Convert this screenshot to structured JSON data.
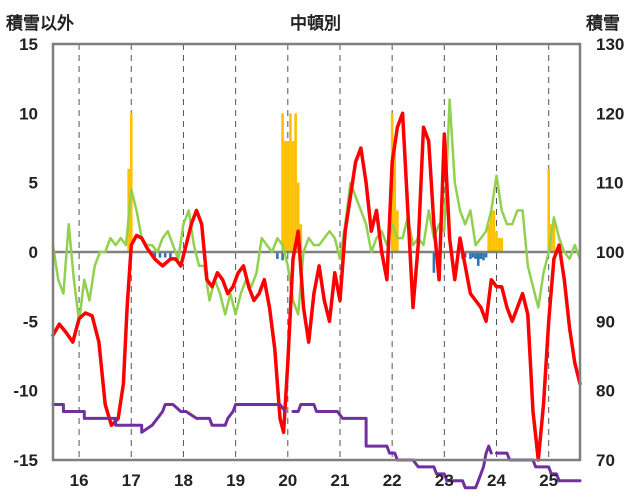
{
  "chart_data": {
    "type": "line",
    "title": "中頓別",
    "ylabel_left": "積雪以外",
    "ylabel_right": "積雪",
    "xlim": [
      15.5,
      25.6
    ],
    "ylim_left": [
      -15,
      15
    ],
    "ylim_right": [
      70,
      130
    ],
    "left_ticks": [
      "15",
      "10",
      "5",
      "0",
      "-5",
      "-10",
      "-15"
    ],
    "right_ticks": [
      "130",
      "120",
      "110",
      "100",
      "90",
      "80",
      "70"
    ],
    "x_ticks": [
      "16",
      "17",
      "18",
      "19",
      "20",
      "21",
      "22",
      "23",
      "24",
      "25"
    ],
    "grid": "vertical-dashed",
    "legend": "none",
    "colors": {
      "red": "#ff0000",
      "green": "#92d050",
      "purple": "#7030a0",
      "orange_bars": "#ffc000",
      "blue_bars": "#2e75b6",
      "zero_line": "#808080",
      "frame": "#7f7f7f"
    },
    "series": [
      {
        "color": "red",
        "axis": "left",
        "x": [
          15.5,
          15.62,
          15.75,
          15.88,
          16.0,
          16.12,
          16.25,
          16.38,
          16.5,
          16.62,
          16.75,
          16.85,
          16.92,
          17.0,
          17.1,
          17.2,
          17.3,
          17.45,
          17.6,
          17.75,
          17.85,
          17.95,
          18.05,
          18.15,
          18.25,
          18.35,
          18.45,
          18.55,
          18.65,
          18.75,
          18.85,
          18.95,
          19.05,
          19.15,
          19.25,
          19.35,
          19.45,
          19.55,
          19.65,
          19.75,
          19.85,
          19.92,
          20.0,
          20.1,
          20.2,
          20.3,
          20.4,
          20.5,
          20.6,
          20.7,
          20.8,
          20.9,
          21.0,
          21.1,
          21.2,
          21.3,
          21.4,
          21.5,
          21.6,
          21.7,
          21.8,
          21.9,
          22.0,
          22.1,
          22.2,
          22.3,
          22.4,
          22.5,
          22.6,
          22.7,
          22.8,
          22.9,
          23.0,
          23.1,
          23.2,
          23.3,
          23.4,
          23.5,
          23.6,
          23.7,
          23.8,
          23.9,
          24.0,
          24.1,
          24.2,
          24.3,
          24.4,
          24.5,
          24.6,
          24.7,
          24.8,
          24.9,
          25.0,
          25.1,
          25.2,
          25.3,
          25.4,
          25.5,
          25.6
        ],
        "y": [
          -6,
          -5.2,
          -5.8,
          -6.5,
          -4.8,
          -4.4,
          -4.6,
          -6.5,
          -11,
          -12.5,
          -12,
          -9.5,
          -4,
          0.5,
          1.2,
          1,
          0.3,
          -0.5,
          -1,
          -0.5,
          -0.5,
          -1,
          0.5,
          2,
          3,
          2,
          -2,
          -2.5,
          -1.5,
          -2,
          -3,
          -2.5,
          -1.5,
          -1,
          -2.5,
          -3.5,
          -3,
          -2,
          -4,
          -7,
          -12,
          -13,
          -8,
          -0.5,
          1.5,
          -4,
          -6.5,
          -3,
          -1,
          -3.5,
          -5,
          -1.5,
          -3.5,
          1.5,
          4,
          6.5,
          7.5,
          5,
          1.5,
          3,
          0,
          -2,
          6.5,
          9,
          10,
          3,
          -4,
          0.5,
          9,
          8,
          2,
          -2,
          8.5,
          1,
          -2,
          1,
          -1,
          -3,
          -3.5,
          -4,
          -5,
          -2,
          -2.5,
          -2.5,
          -4,
          -5,
          -4,
          -3,
          -4.5,
          -11.5,
          -15,
          -11,
          -5,
          -0.5,
          0.5,
          -2,
          -5.5,
          -8,
          -9.5
        ]
      },
      {
        "color": "green",
        "axis": "left",
        "x": [
          15.5,
          15.6,
          15.7,
          15.8,
          15.9,
          16.0,
          16.1,
          16.2,
          16.3,
          16.4,
          16.5,
          16.6,
          16.7,
          16.8,
          16.9,
          17.0,
          17.1,
          17.2,
          17.3,
          17.4,
          17.5,
          17.6,
          17.7,
          17.8,
          17.9,
          18.0,
          18.1,
          18.2,
          18.3,
          18.4,
          18.5,
          18.6,
          18.7,
          18.8,
          18.9,
          19.0,
          19.1,
          19.2,
          19.3,
          19.4,
          19.5,
          19.6,
          19.7,
          19.8,
          19.9,
          20.0,
          20.1,
          20.2,
          20.3,
          20.4,
          20.5,
          20.6,
          20.7,
          20.8,
          20.9,
          21.0,
          21.1,
          21.2,
          21.3,
          21.4,
          21.5,
          21.6,
          21.7,
          21.8,
          21.9,
          22.0,
          22.1,
          22.2,
          22.3,
          22.4,
          22.5,
          22.6,
          22.7,
          22.8,
          22.9,
          23.0,
          23.1,
          23.2,
          23.3,
          23.4,
          23.5,
          23.6,
          23.7,
          23.8,
          23.9,
          24.0,
          24.1,
          24.2,
          24.3,
          24.4,
          24.5,
          24.6,
          24.7,
          24.8,
          24.9,
          25.0,
          25.1,
          25.2,
          25.3,
          25.4,
          25.5,
          25.6
        ],
        "y": [
          0.5,
          -2,
          -3,
          2,
          -2,
          -5,
          -2,
          -3.5,
          -1,
          0,
          0,
          1,
          0.5,
          1,
          0.5,
          4.5,
          3,
          1,
          0.5,
          0.5,
          0,
          1,
          1.5,
          0.5,
          -0.5,
          2,
          3,
          0.5,
          -1,
          -1,
          -3.5,
          -2,
          -3,
          -4.5,
          -3,
          -4.5,
          -3,
          -2,
          -2.5,
          -1.5,
          1,
          0.5,
          0,
          1,
          0.5,
          -1,
          -3.5,
          -4.5,
          0,
          1,
          0.5,
          0.5,
          1,
          1.5,
          1,
          -0.5,
          2,
          5,
          4,
          3,
          2,
          0,
          1,
          1.5,
          0.5,
          2,
          1,
          1,
          2.5,
          0.5,
          1,
          0.5,
          3,
          1,
          2,
          1.5,
          11,
          5,
          3,
          2,
          3,
          0.5,
          1,
          1.5,
          3,
          5.5,
          3,
          2,
          2,
          3,
          3,
          -1,
          -2.5,
          -4,
          -1.5,
          0,
          2.5,
          1,
          0,
          -0.5,
          0.5,
          -0.5
        ]
      },
      {
        "color": "purple",
        "axis": "right",
        "segments": [
          {
            "x": [
              15.5,
              15.7,
              15.7,
              16.1,
              16.1,
              16.7,
              16.7,
              16.8,
              16.8,
              17.2,
              17.2,
              17.4,
              17.5,
              17.6,
              17.65,
              17.8,
              17.95,
              18.05,
              18.25,
              18.5,
              18.55,
              18.8,
              18.85,
              18.95,
              19.0,
              19.1,
              19.3,
              19.5,
              19.6,
              19.85,
              19.95
            ],
            "y": [
              78,
              78,
              77,
              77,
              76,
              76,
              75,
              75,
              75,
              75,
              74,
              75,
              76,
              77,
              78,
              78,
              77,
              77,
              76,
              76,
              75,
              75,
              76,
              77,
              78,
              78,
              78,
              78,
              78,
              78,
              77
            ]
          },
          {
            "x": [
              20.1,
              20.2,
              20.25,
              20.5,
              20.55,
              20.95,
              21.05,
              21.1,
              21.5,
              21.5,
              21.9,
              21.95,
              22.05,
              22.1,
              22.4,
              22.5,
              22.8,
              22.85,
              23.0,
              23.05,
              23.35,
              23.4,
              23.6,
              23.65,
              23.75,
              23.8,
              23.85,
              23.9
            ],
            "y": [
              77,
              77,
              78,
              78,
              77,
              77,
              76,
              76,
              76,
              72,
              72,
              71,
              71,
              70,
              70,
              69,
              69,
              68,
              68,
              67,
              67,
              66,
              66,
              67,
              69,
              71,
              72,
              71
            ]
          },
          {
            "x": [
              24.0,
              24.2,
              24.25,
              24.7,
              24.75,
              25.0,
              25.05,
              25.15,
              25.2,
              25.6
            ],
            "y": [
              71,
              71,
              70,
              70,
              69,
              69,
              68,
              68,
              67,
              67
            ]
          }
        ]
      }
    ],
    "bars": [
      {
        "color": "orange_bars",
        "axis": "left",
        "x": [
          16.95,
          17.0,
          19.9,
          19.95,
          20.0,
          20.05,
          20.1,
          20.15,
          20.2,
          20.25,
          22.0,
          22.05,
          22.1,
          23.85,
          23.9,
          23.95,
          24.0,
          24.05,
          24.1,
          25.0,
          25.05,
          25.1
        ],
        "values": [
          6,
          10,
          10,
          8,
          8,
          10,
          8,
          10,
          5,
          2,
          10,
          8,
          3,
          2,
          3,
          3,
          1.5,
          1,
          1,
          6,
          2,
          2
        ]
      },
      {
        "color": "blue_bars",
        "axis": "left",
        "x": [
          17.45,
          17.55,
          17.65,
          17.75,
          19.8,
          19.9,
          22.8,
          23.35,
          23.4,
          23.5,
          23.55,
          23.6,
          23.65,
          23.7,
          23.75,
          23.8
        ],
        "values": [
          -0.4,
          -0.4,
          -0.4,
          -0.4,
          -0.5,
          -0.6,
          -1.5,
          -0.5,
          -0.4,
          -0.5,
          -0.4,
          -0.5,
          -1,
          -0.5,
          -0.6,
          -0.4
        ]
      }
    ]
  }
}
